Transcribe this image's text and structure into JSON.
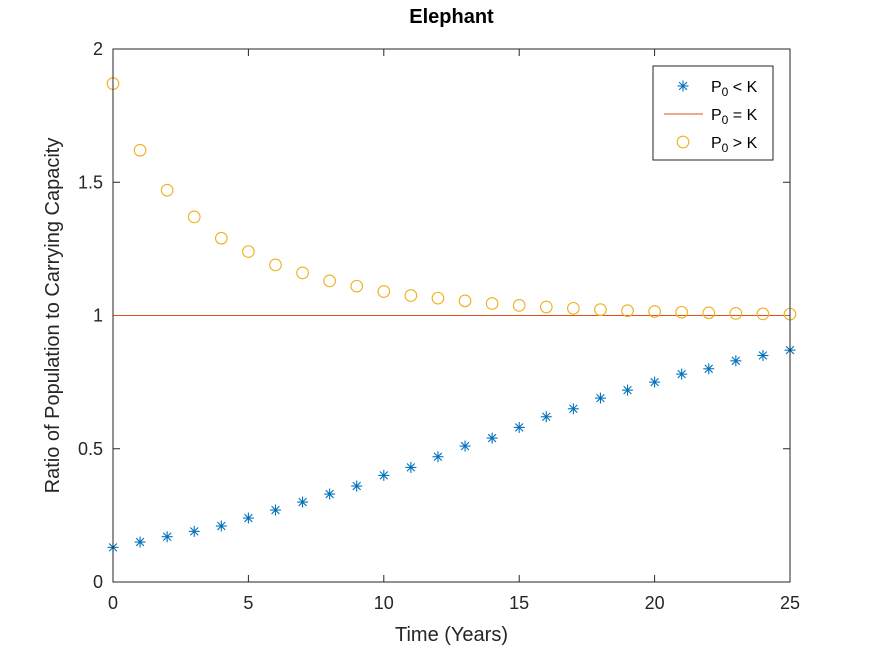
{
  "chart_data": {
    "type": "scatter",
    "title": "Elephant",
    "xlabel": "Time (Years)",
    "ylabel": "Ratio of Population to Carrying Capacity",
    "xlim": [
      0,
      25
    ],
    "ylim": [
      0,
      2
    ],
    "xticks": [
      0,
      5,
      10,
      15,
      20,
      25
    ],
    "yticks": [
      0,
      0.5,
      1,
      1.5,
      2
    ],
    "ytick_labels": [
      "0",
      "0.5",
      "1",
      "1.5",
      "2"
    ],
    "grid": false,
    "legend_position": "top-right",
    "x": [
      0,
      1,
      2,
      3,
      4,
      5,
      6,
      7,
      8,
      9,
      10,
      11,
      12,
      13,
      14,
      15,
      16,
      17,
      18,
      19,
      20,
      21,
      22,
      23,
      24,
      25
    ],
    "series": [
      {
        "name_main": "P",
        "name_sub": "0",
        "name_rest": " < K",
        "marker": "asterisk",
        "color": "#0072BD",
        "values": [
          0.13,
          0.15,
          0.17,
          0.19,
          0.21,
          0.24,
          0.27,
          0.3,
          0.33,
          0.36,
          0.4,
          0.43,
          0.47,
          0.51,
          0.54,
          0.58,
          0.62,
          0.65,
          0.69,
          0.72,
          0.75,
          0.78,
          0.8,
          0.83,
          0.85,
          0.87
        ]
      },
      {
        "name_main": "P",
        "name_sub": "0",
        "name_rest": " = K",
        "marker": "line",
        "color": "#D95319",
        "values": [
          1,
          1,
          1,
          1,
          1,
          1,
          1,
          1,
          1,
          1,
          1,
          1,
          1,
          1,
          1,
          1,
          1,
          1,
          1,
          1,
          1,
          1,
          1,
          1,
          1,
          1
        ]
      },
      {
        "name_main": "P",
        "name_sub": "0",
        "name_rest": " > K",
        "marker": "circle",
        "color": "#EDB120",
        "values": [
          1.87,
          1.62,
          1.47,
          1.37,
          1.29,
          1.24,
          1.19,
          1.16,
          1.13,
          1.11,
          1.09,
          1.075,
          1.065,
          1.055,
          1.045,
          1.038,
          1.032,
          1.027,
          1.022,
          1.018,
          1.015,
          1.012,
          1.01,
          1.008,
          1.006,
          1.005
        ]
      }
    ]
  }
}
